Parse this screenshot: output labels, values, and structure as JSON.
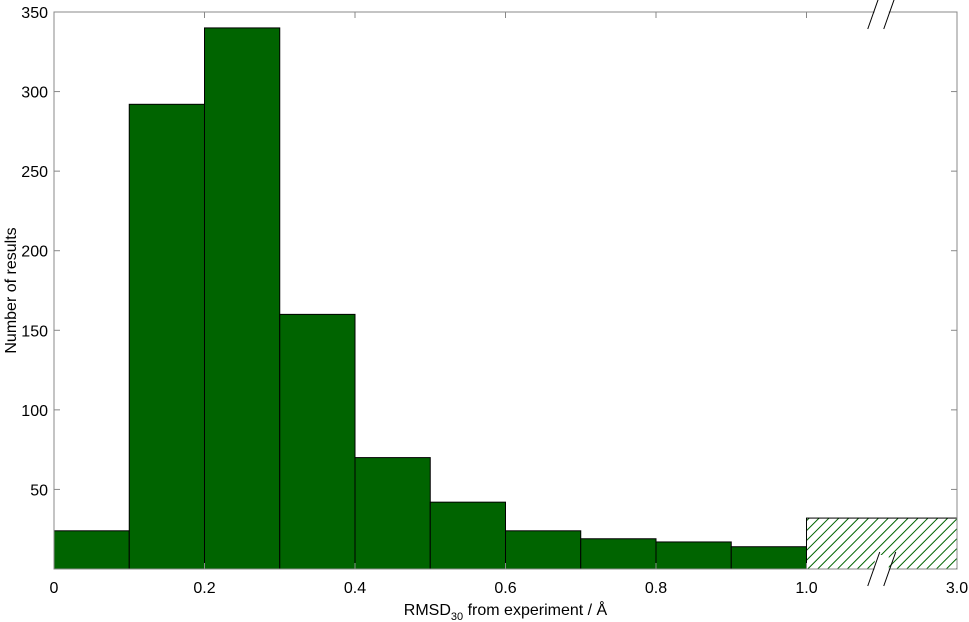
{
  "chart_data": {
    "type": "histogram",
    "bins": [
      0,
      0.1,
      0.2,
      0.3,
      0.4,
      0.5,
      0.6,
      0.7,
      0.8,
      0.9,
      1.0,
      3.0
    ],
    "values": [
      24,
      292,
      340,
      160,
      70,
      42,
      24,
      19,
      17,
      14,
      32
    ],
    "color": "#006400",
    "edge_color": "#000000",
    "last_bin_hatched": true,
    "broken_axis": true,
    "xlim": [
      0,
      3.0
    ],
    "xticks": [
      0,
      0.2,
      0.4,
      0.6,
      0.8,
      {
        "value": 1.0,
        "label": "1.0"
      },
      {
        "value": 3.0,
        "label": "3.0"
      }
    ],
    "ylim": [
      0,
      350
    ],
    "yticks": [
      50,
      100,
      150,
      200,
      250,
      300,
      350
    ],
    "xlabel": [
      "RMSD",
      "30",
      " from experiment / Å"
    ],
    "ylabel": "Number of results",
    "grid": false
  }
}
